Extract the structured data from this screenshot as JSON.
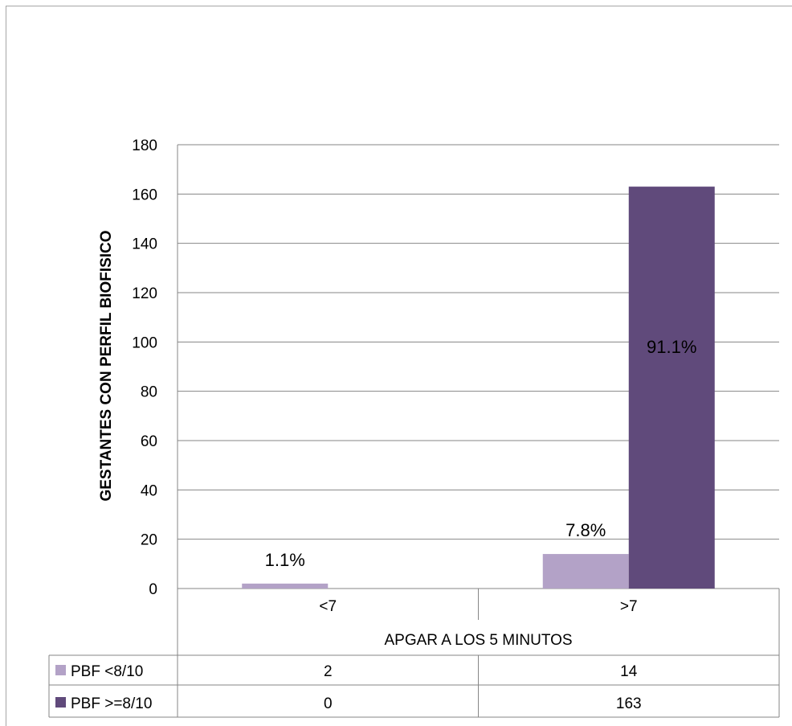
{
  "chart_data": {
    "type": "bar",
    "categories": [
      "<7",
      ">7"
    ],
    "series": [
      {
        "name": "PBF <8/10",
        "values": [
          2,
          14
        ],
        "labels": [
          "1.1%",
          "7.8%"
        ],
        "color": "#b3a2c7"
      },
      {
        "name": "PBF >=8/10",
        "values": [
          0,
          163
        ],
        "labels": [
          "",
          "91.1%"
        ],
        "color": "#604a7b"
      }
    ],
    "xlabel": "APGAR A LOS 5 MINUTOS",
    "ylabel": "GESTANTES CON PERFIL BIOFISICO",
    "ylim": [
      0,
      180
    ],
    "yticks": [
      0,
      20,
      40,
      60,
      80,
      100,
      120,
      140,
      160,
      180
    ],
    "grid": true,
    "legend": "data-table"
  },
  "colors": {
    "grid": "#868686",
    "text": "#000000"
  }
}
